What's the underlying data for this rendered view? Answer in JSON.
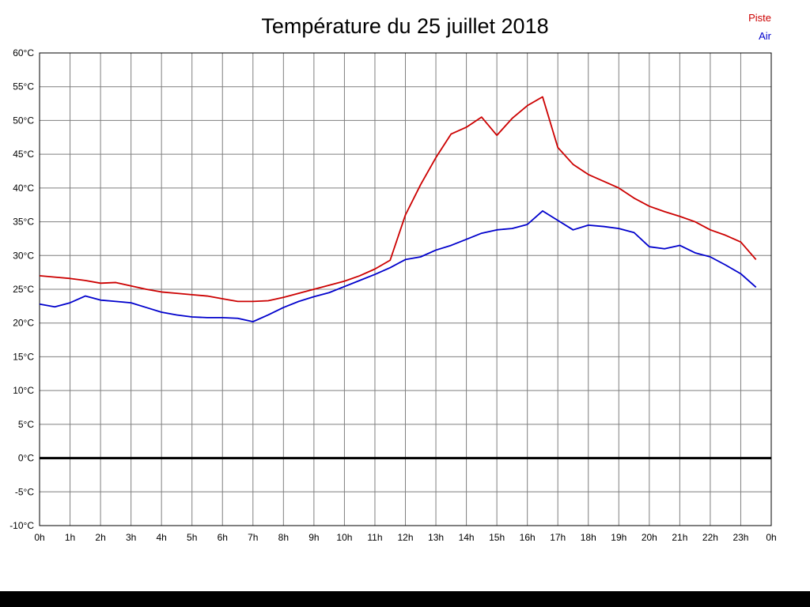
{
  "title": "Température du 25 juillet 2018",
  "legend": {
    "piste": "Piste",
    "air": "Air"
  },
  "colors": {
    "piste": "#cc0000",
    "air": "#0000cc",
    "grid": "#7f7f7f",
    "frame": "#000000",
    "zero_line": "#000000",
    "footer": "#000000",
    "text": "#000000",
    "background": "#ffffff"
  },
  "chart_data": {
    "type": "line",
    "title": "Température du 25 juillet 2018",
    "xlabel": "",
    "ylabel": "",
    "x_unit": "hours",
    "xlim": [
      0,
      24
    ],
    "ylim": [
      -10,
      60
    ],
    "grid": true,
    "zero_line_at": 0,
    "legend_position": "top-right",
    "x_tick_labels": [
      "0h",
      "1h",
      "2h",
      "3h",
      "4h",
      "5h",
      "6h",
      "7h",
      "8h",
      "9h",
      "10h",
      "11h",
      "12h",
      "13h",
      "14h",
      "15h",
      "16h",
      "17h",
      "18h",
      "19h",
      "20h",
      "21h",
      "22h",
      "23h",
      "0h"
    ],
    "y_ticks": [
      60,
      55,
      50,
      45,
      40,
      35,
      30,
      25,
      20,
      15,
      10,
      5,
      0,
      -5,
      -10
    ],
    "y_tick_suffix": "°C",
    "x": [
      0,
      0.5,
      1,
      1.5,
      2,
      2.5,
      3,
      3.5,
      4,
      4.5,
      5,
      5.5,
      6,
      6.5,
      7,
      7.5,
      8,
      8.5,
      9,
      9.5,
      10,
      10.5,
      11,
      11.5,
      12,
      12.5,
      13,
      13.5,
      14,
      14.5,
      15,
      15.5,
      16,
      16.5,
      17,
      17.5,
      18,
      18.5,
      19,
      19.5,
      20,
      20.5,
      21,
      21.5,
      22,
      22.5,
      23,
      23.5
    ],
    "series": [
      {
        "name": "Piste",
        "color": "#cc0000",
        "values": [
          27.0,
          26.8,
          26.6,
          26.3,
          25.9,
          26.0,
          25.5,
          25.0,
          24.6,
          24.4,
          24.2,
          24.0,
          23.6,
          23.2,
          23.2,
          23.3,
          23.8,
          24.4,
          25.0,
          25.6,
          26.2,
          27.0,
          28.0,
          29.3,
          36.0,
          40.5,
          44.5,
          48.0,
          49.0,
          50.5,
          47.8,
          50.3,
          52.2,
          53.5,
          46.0,
          43.5,
          42.0,
          41.0,
          40.0,
          38.5,
          37.3,
          36.5,
          35.8,
          35.0,
          33.8,
          33.0,
          32.0,
          29.4
        ]
      },
      {
        "name": "Air",
        "color": "#0000cc",
        "values": [
          22.8,
          22.4,
          23.0,
          24.0,
          23.4,
          23.2,
          23.0,
          22.3,
          21.6,
          21.2,
          20.9,
          20.8,
          20.8,
          20.7,
          20.2,
          21.2,
          22.3,
          23.2,
          23.9,
          24.5,
          25.4,
          26.3,
          27.2,
          28.2,
          29.4,
          29.8,
          30.8,
          31.5,
          32.4,
          33.3,
          33.8,
          34.0,
          34.6,
          36.6,
          35.2,
          33.8,
          34.5,
          34.3,
          34.0,
          33.4,
          31.3,
          31.0,
          31.5,
          30.4,
          29.8,
          28.6,
          27.3,
          25.3
        ]
      }
    ]
  }
}
